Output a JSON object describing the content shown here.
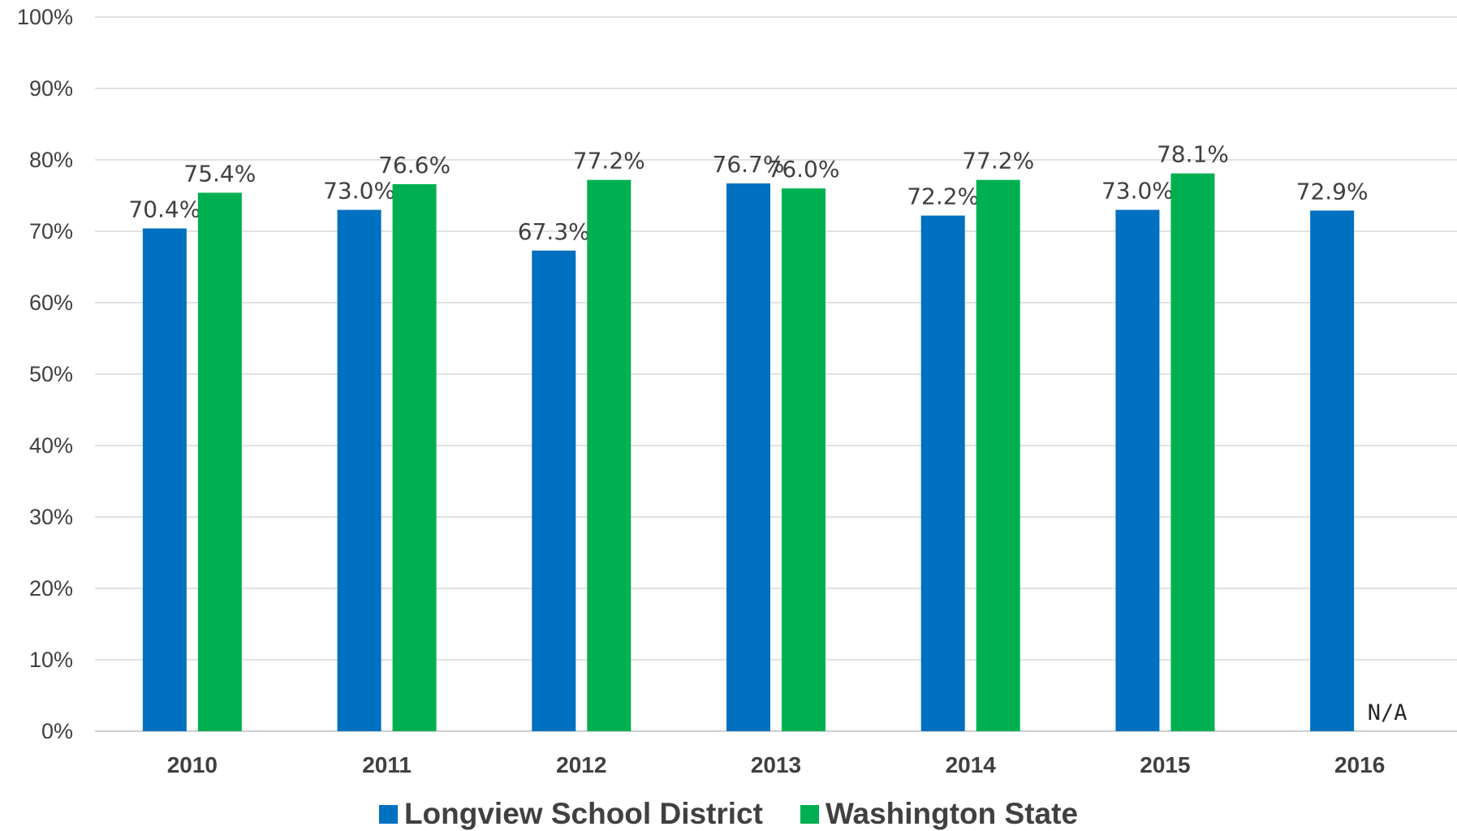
{
  "chart_data": {
    "type": "bar",
    "categories": [
      "2010",
      "2011",
      "2012",
      "2013",
      "2014",
      "2015",
      "2016"
    ],
    "series": [
      {
        "name": "Longview School District",
        "color": "#0070C0",
        "values": [
          70.4,
          73.0,
          67.3,
          76.7,
          72.2,
          73.0,
          72.9
        ],
        "labels": [
          "70.4%",
          "73.0%",
          "67.3%",
          "76.7%",
          "72.2%",
          "73.0%",
          "72.9%"
        ]
      },
      {
        "name": "Washington State",
        "color": "#00B050",
        "values": [
          75.4,
          76.6,
          77.2,
          76.0,
          77.2,
          78.1,
          null
        ],
        "labels": [
          "75.4%",
          "76.6%",
          "77.2%",
          "76.0%",
          "77.2%",
          "78.1%",
          "N/A"
        ]
      }
    ],
    "yticks": [
      "0%",
      "10%",
      "20%",
      "30%",
      "40%",
      "50%",
      "60%",
      "70%",
      "80%",
      "90%",
      "100%"
    ],
    "ylim": [
      0,
      100
    ],
    "grid": true,
    "legend_position": "bottom",
    "xlabel": "",
    "ylabel": "",
    "title": ""
  }
}
